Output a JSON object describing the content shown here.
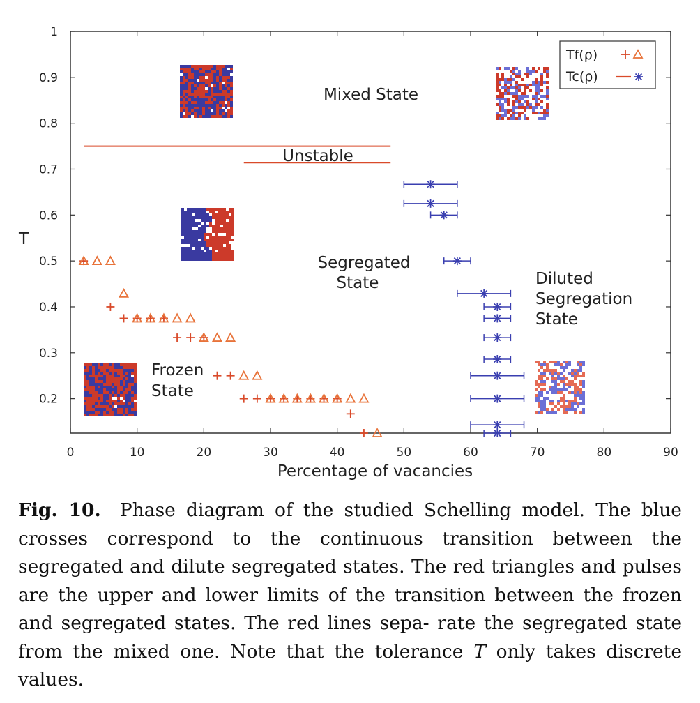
{
  "chart_data": {
    "type": "scatter",
    "xlabel": "Percentage of vacancies",
    "ylabel": "T",
    "xlim": [
      0,
      90
    ],
    "ylim": [
      0.125,
      1
    ],
    "xticks": [
      "0",
      "10",
      "20",
      "30",
      "40",
      "50",
      "60",
      "70",
      "80",
      "90"
    ],
    "yticks": [
      "0.2",
      "0.3",
      "0.4",
      "0.5",
      "0.6",
      "0.7",
      "0.8",
      "0.9",
      "1"
    ],
    "legend": {
      "position": "top-right",
      "entries": [
        "Tf(ρ)",
        "Tc(ρ)"
      ]
    },
    "series": [
      {
        "name": "Tf(ρ)",
        "marker": "plus",
        "color": "#d94a2a",
        "points": [
          [
            2,
            0.5
          ],
          [
            6,
            0.4
          ],
          [
            8,
            0.375
          ],
          [
            10,
            0.375
          ],
          [
            12,
            0.375
          ],
          [
            14,
            0.375
          ],
          [
            16,
            0.333
          ],
          [
            18,
            0.333
          ],
          [
            20,
            0.333
          ],
          [
            22,
            0.25
          ],
          [
            24,
            0.25
          ],
          [
            26,
            0.2
          ],
          [
            28,
            0.2
          ],
          [
            30,
            0.2
          ],
          [
            32,
            0.2
          ],
          [
            34,
            0.2
          ],
          [
            36,
            0.2
          ],
          [
            38,
            0.2
          ],
          [
            40,
            0.2
          ],
          [
            42,
            0.167
          ],
          [
            44,
            0.125
          ]
        ]
      },
      {
        "name": "Tf(ρ) upper",
        "marker": "triangle",
        "color": "#e8733a",
        "points": [
          [
            2,
            0.5
          ],
          [
            4,
            0.5
          ],
          [
            6,
            0.5
          ],
          [
            8,
            0.429
          ],
          [
            10,
            0.375
          ],
          [
            12,
            0.375
          ],
          [
            14,
            0.375
          ],
          [
            16,
            0.375
          ],
          [
            18,
            0.375
          ],
          [
            20,
            0.333
          ],
          [
            22,
            0.333
          ],
          [
            24,
            0.333
          ],
          [
            26,
            0.25
          ],
          [
            28,
            0.25
          ],
          [
            30,
            0.2
          ],
          [
            32,
            0.2
          ],
          [
            34,
            0.2
          ],
          [
            36,
            0.2
          ],
          [
            38,
            0.2
          ],
          [
            40,
            0.2
          ],
          [
            42,
            0.2
          ],
          [
            44,
            0.2
          ],
          [
            46,
            0.125
          ]
        ]
      },
      {
        "name": "Tc(ρ)",
        "marker": "asterisk",
        "color": "#3a3fb0",
        "points": [
          {
            "x": 54,
            "y": 0.667,
            "xerr": 4
          },
          {
            "x": 54,
            "y": 0.625,
            "xerr": 4
          },
          {
            "x": 56,
            "y": 0.6,
            "xerr": 2
          },
          {
            "x": 58,
            "y": 0.5,
            "xerr": 2
          },
          {
            "x": 62,
            "y": 0.429,
            "xerr": 4
          },
          {
            "x": 64,
            "y": 0.4,
            "xerr": 2
          },
          {
            "x": 64,
            "y": 0.375,
            "xerr": 2
          },
          {
            "x": 64,
            "y": 0.333,
            "xerr": 2
          },
          {
            "x": 64,
            "y": 0.286,
            "xerr": 2
          },
          {
            "x": 64,
            "y": 0.25,
            "xerr": 4
          },
          {
            "x": 64,
            "y": 0.2,
            "xerr": 4
          },
          {
            "x": 64,
            "y": 0.143,
            "xerr": 4
          },
          {
            "x": 64,
            "y": 0.125,
            "xerr": 2
          }
        ]
      }
    ],
    "lines": [
      {
        "name": "Tc(ρ)",
        "color": "#d94a2a",
        "y": 0.75,
        "x": [
          2,
          48
        ]
      },
      {
        "name": "Tc(ρ)",
        "color": "#d94a2a",
        "y": 0.714,
        "x": [
          26,
          48
        ]
      }
    ],
    "annotations": [
      "Mixed State",
      "Unstable",
      "Segregated",
      "State",
      "Diluted",
      "Segregation",
      "State",
      "Frozen",
      "State"
    ]
  },
  "caption": {
    "fig_label": "Fig. 10.",
    "line1": "Phase diagram of the studied Schelling model. The",
    "line2": "blue crosses correspond to the continuous transition between",
    "line3": "the segregated and dilute segregated states. The red triangles",
    "line4": "and pulses are the upper and lower limits of the transition",
    "line5": "between the frozen and segregated states. The red lines sepa-",
    "line6": "rate the segregated state from the mixed one. Note that the",
    "line7_a": "tolerance",
    "line7_var": "T",
    "line7_b": "only takes discrete values."
  },
  "colors": {
    "red": "#d94a2a",
    "orange": "#e8733a",
    "blue": "#3a3fb0"
  }
}
